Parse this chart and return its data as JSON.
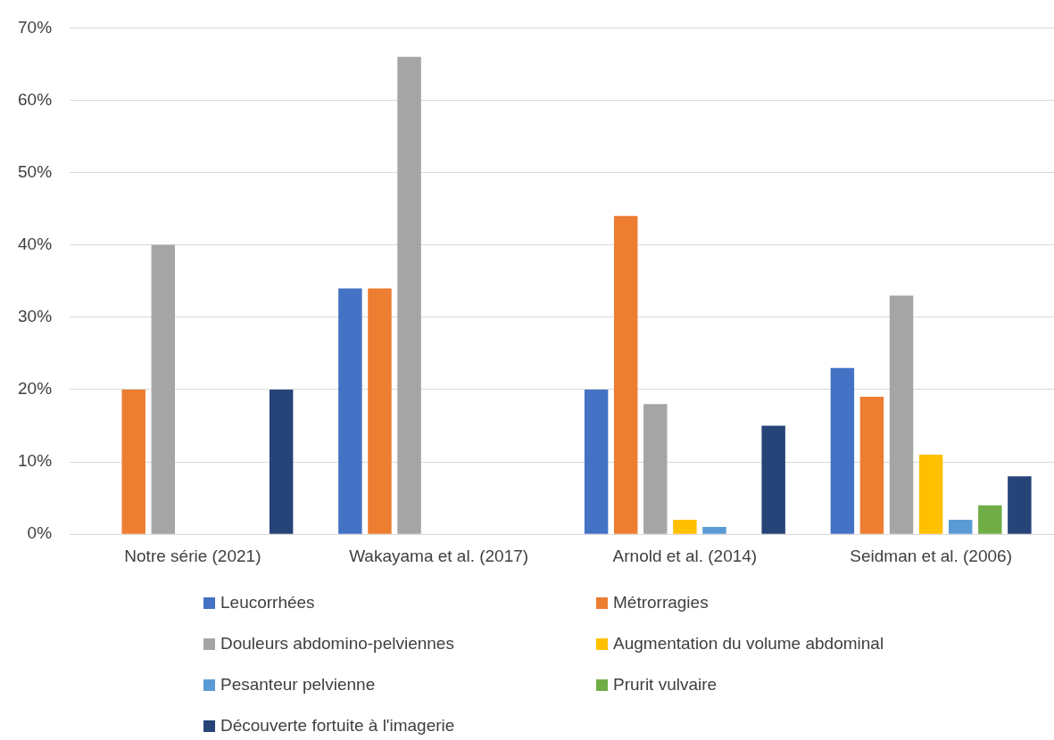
{
  "chart_data": {
    "type": "bar",
    "categories": [
      "Notre série (2021)",
      "Wakayama et al. (2017)",
      "Arnold et al. (2014)",
      "Seidman et al. (2006)"
    ],
    "series": [
      {
        "name": "Leucorrhées",
        "color": "#4472c4",
        "values": [
          0,
          34,
          20,
          23
        ]
      },
      {
        "name": "Métrorragies",
        "color": "#ed7d31",
        "values": [
          20,
          34,
          44,
          19
        ]
      },
      {
        "name": "Douleurs abdomino-pelviennes",
        "color": "#a5a5a5",
        "values": [
          40,
          66,
          18,
          33
        ]
      },
      {
        "name": "Augmentation du volume abdominal",
        "color": "#ffc000",
        "values": [
          0,
          0,
          2,
          11
        ]
      },
      {
        "name": "Pesanteur pelvienne",
        "color": "#5b9bd5",
        "values": [
          0,
          0,
          1,
          2
        ]
      },
      {
        "name": "Prurit vulvaire",
        "color": "#70ad47",
        "values": [
          0,
          0,
          0,
          4
        ]
      },
      {
        "name": "Découverte fortuite à l'imagerie",
        "color": "#264478",
        "values": [
          20,
          0,
          15,
          8
        ]
      }
    ],
    "ylim": [
      0,
      70
    ],
    "yticks": [
      {
        "value": 0,
        "label": "0%"
      },
      {
        "value": 10,
        "label": "10%"
      },
      {
        "value": 20,
        "label": "20%"
      },
      {
        "value": 30,
        "label": "30%"
      },
      {
        "value": 40,
        "label": "40%"
      },
      {
        "value": 50,
        "label": "50%"
      },
      {
        "value": 60,
        "label": "60%"
      },
      {
        "value": 70,
        "label": "70%"
      }
    ],
    "grid": "y",
    "legend": "bottom"
  }
}
